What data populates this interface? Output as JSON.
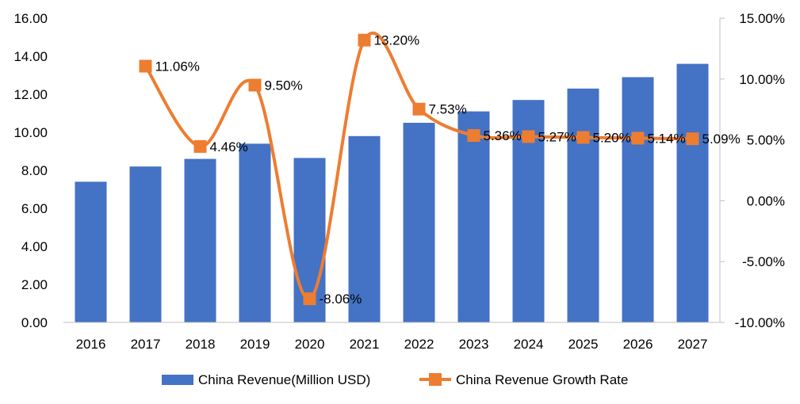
{
  "chart_data": {
    "type": "bar+line",
    "categories": [
      "2016",
      "2017",
      "2018",
      "2019",
      "2020",
      "2021",
      "2022",
      "2023",
      "2024",
      "2025",
      "2026",
      "2027"
    ],
    "series": [
      {
        "name": "China Revenue(Million USD)",
        "type": "bar",
        "axis": "left",
        "color": "#4472C4",
        "values": [
          7.4,
          8.2,
          8.6,
          9.4,
          8.65,
          9.8,
          10.5,
          11.1,
          11.7,
          12.3,
          12.9,
          13.6
        ]
      },
      {
        "name": "China Revenue Growth Rate",
        "type": "line",
        "axis": "right",
        "color": "#ED7D31",
        "values": [
          null,
          11.06,
          4.46,
          9.5,
          -8.06,
          13.2,
          7.53,
          5.36,
          5.27,
          5.2,
          5.14,
          5.09
        ],
        "labels": [
          "",
          "11.06%",
          "4.46%",
          "9.50%",
          "-8.06%",
          "13.20%",
          "7.53%",
          "5.36%",
          "5.27%",
          "5.20%",
          "5.14%",
          "5.09%"
        ]
      }
    ],
    "y_left": {
      "range": [
        0,
        16
      ],
      "ticks": [
        "0.00",
        "2.00",
        "4.00",
        "6.00",
        "8.00",
        "10.00",
        "12.00",
        "14.00",
        "16.00"
      ]
    },
    "y_right": {
      "range": [
        -10,
        15
      ],
      "ticks": [
        "-10.00%",
        "-5.00%",
        "0.00%",
        "5.00%",
        "10.00%",
        "15.00%"
      ]
    },
    "grid": false,
    "legend": "bottom"
  }
}
